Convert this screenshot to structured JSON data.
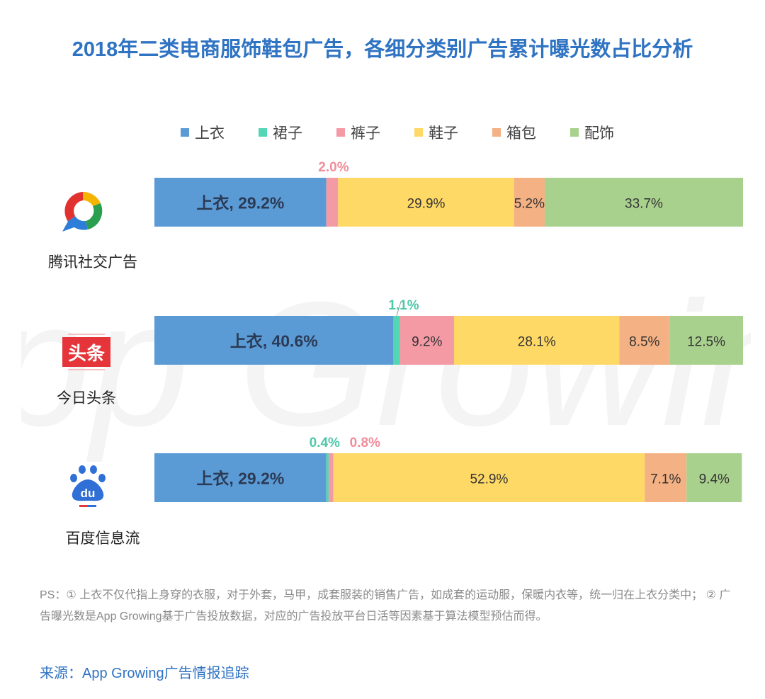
{
  "title": "2018年二类电商服饰鞋包广告，各细分类别广告累计曝光数占比分析",
  "watermark_text": "App Growing",
  "chart_data": {
    "type": "bar",
    "orientation": "horizontal",
    "stacked": true,
    "normalized": true,
    "title": "2018年二类电商服饰鞋包广告，各细分类别广告累计曝光数占比分析",
    "categories": [
      "腾讯社交广告",
      "今日头条",
      "百度信息流"
    ],
    "series": [
      {
        "name": "上衣",
        "color": "#5b9bd5",
        "values": [
          29.2,
          40.6,
          29.2
        ]
      },
      {
        "name": "裙子",
        "color": "#52d6b4",
        "values": [
          0.0,
          1.1,
          0.4
        ]
      },
      {
        "name": "裤子",
        "color": "#f49aa5",
        "values": [
          2.0,
          9.2,
          0.8
        ]
      },
      {
        "name": "鞋子",
        "color": "#ffd966",
        "values": [
          29.9,
          28.1,
          52.9
        ]
      },
      {
        "name": "箱包",
        "color": "#f4b183",
        "values": [
          5.2,
          8.5,
          7.1
        ]
      },
      {
        "name": "配饰",
        "color": "#a9d18e",
        "values": [
          33.7,
          12.5,
          9.4
        ]
      }
    ],
    "data_labels": [
      [
        "上衣, 29.2%",
        "",
        "2.0%",
        "29.9%",
        "5.2%",
        "33.7%"
      ],
      [
        "上衣, 40.6%",
        "1.1%",
        "9.2%",
        "28.1%",
        "8.5%",
        "12.5%"
      ],
      [
        "上衣, 29.2%",
        "0.4%",
        "0.8%",
        "52.9%",
        "7.1%",
        "9.4%"
      ]
    ],
    "legend_position": "top",
    "xlim": [
      0,
      100
    ]
  },
  "ps_note": "PS：① 上衣不仅代指上身穿的衣服，对于外套，马甲，成套服装的销售广告，如成套的运动服，保暖内衣等，统一归在上衣分类中； ② 广告曝光数是App Growing基于广告投放数据，对应的广告投放平台日活等因素基于算法模型预估而得。",
  "source": "来源：App Growing广告情报追踪",
  "logos": {
    "toutiao_text": "头条",
    "baidu_text": "du"
  }
}
